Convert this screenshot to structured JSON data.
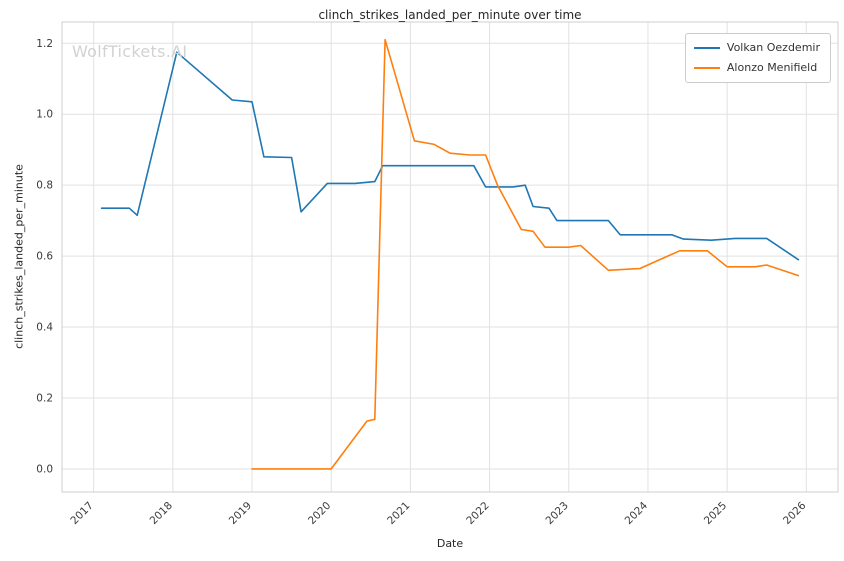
{
  "chart_data": {
    "type": "line",
    "title": "clinch_strikes_landed_per_minute over time",
    "xlabel": "Date",
    "ylabel": "clinch_strikes_landed_per_minute",
    "watermark": "WolfTickets.AI",
    "grid": true,
    "legend_position": "upper right",
    "xlim": [
      2016.6,
      2026.4
    ],
    "ylim": [
      -0.065,
      1.26
    ],
    "x_ticks": [
      "2017",
      "2018",
      "2019",
      "2020",
      "2021",
      "2022",
      "2023",
      "2024",
      "2025",
      "2026"
    ],
    "y_ticks": [
      "0.0",
      "0.2",
      "0.4",
      "0.6",
      "0.8",
      "1.0",
      "1.2"
    ],
    "series": [
      {
        "name": "Volkan Oezdemir",
        "color": "#1f77b4",
        "points": [
          [
            2017.1,
            0.735
          ],
          [
            2017.45,
            0.735
          ],
          [
            2017.55,
            0.715
          ],
          [
            2018.05,
            1.175
          ],
          [
            2018.75,
            1.04
          ],
          [
            2019.0,
            1.035
          ],
          [
            2019.15,
            0.88
          ],
          [
            2019.5,
            0.878
          ],
          [
            2019.62,
            0.725
          ],
          [
            2019.95,
            0.805
          ],
          [
            2020.3,
            0.805
          ],
          [
            2020.55,
            0.81
          ],
          [
            2020.65,
            0.855
          ],
          [
            2021.1,
            0.855
          ],
          [
            2021.5,
            0.855
          ],
          [
            2021.8,
            0.855
          ],
          [
            2021.95,
            0.795
          ],
          [
            2022.3,
            0.795
          ],
          [
            2022.45,
            0.8
          ],
          [
            2022.55,
            0.74
          ],
          [
            2022.75,
            0.735
          ],
          [
            2022.85,
            0.7
          ],
          [
            2023.2,
            0.7
          ],
          [
            2023.5,
            0.7
          ],
          [
            2023.65,
            0.66
          ],
          [
            2024.0,
            0.66
          ],
          [
            2024.3,
            0.66
          ],
          [
            2024.45,
            0.648
          ],
          [
            2024.8,
            0.645
          ],
          [
            2025.1,
            0.65
          ],
          [
            2025.5,
            0.65
          ],
          [
            2025.9,
            0.59
          ]
        ]
      },
      {
        "name": "Alonzo Menifield",
        "color": "#ff7f0e",
        "points": [
          [
            2019.0,
            0.0
          ],
          [
            2019.3,
            0.0
          ],
          [
            2019.6,
            0.0
          ],
          [
            2020.0,
            0.0
          ],
          [
            2020.45,
            0.135
          ],
          [
            2020.55,
            0.14
          ],
          [
            2020.68,
            1.21
          ],
          [
            2021.05,
            0.925
          ],
          [
            2021.3,
            0.915
          ],
          [
            2021.5,
            0.89
          ],
          [
            2021.75,
            0.885
          ],
          [
            2021.95,
            0.885
          ],
          [
            2022.1,
            0.8
          ],
          [
            2022.4,
            0.675
          ],
          [
            2022.55,
            0.67
          ],
          [
            2022.7,
            0.625
          ],
          [
            2023.0,
            0.625
          ],
          [
            2023.15,
            0.63
          ],
          [
            2023.5,
            0.56
          ],
          [
            2023.9,
            0.565
          ],
          [
            2024.1,
            0.585
          ],
          [
            2024.4,
            0.615
          ],
          [
            2024.75,
            0.615
          ],
          [
            2025.0,
            0.57
          ],
          [
            2025.35,
            0.57
          ],
          [
            2025.5,
            0.575
          ],
          [
            2025.9,
            0.545
          ]
        ]
      }
    ]
  },
  "theme": {
    "background": "#ffffff",
    "grid_color": "#e2e2e2",
    "spine_color": "#cfcfcf",
    "text_color": "#3a3a3a",
    "watermark_color": "#d2d2d2",
    "legend_border": "#cccccc"
  }
}
